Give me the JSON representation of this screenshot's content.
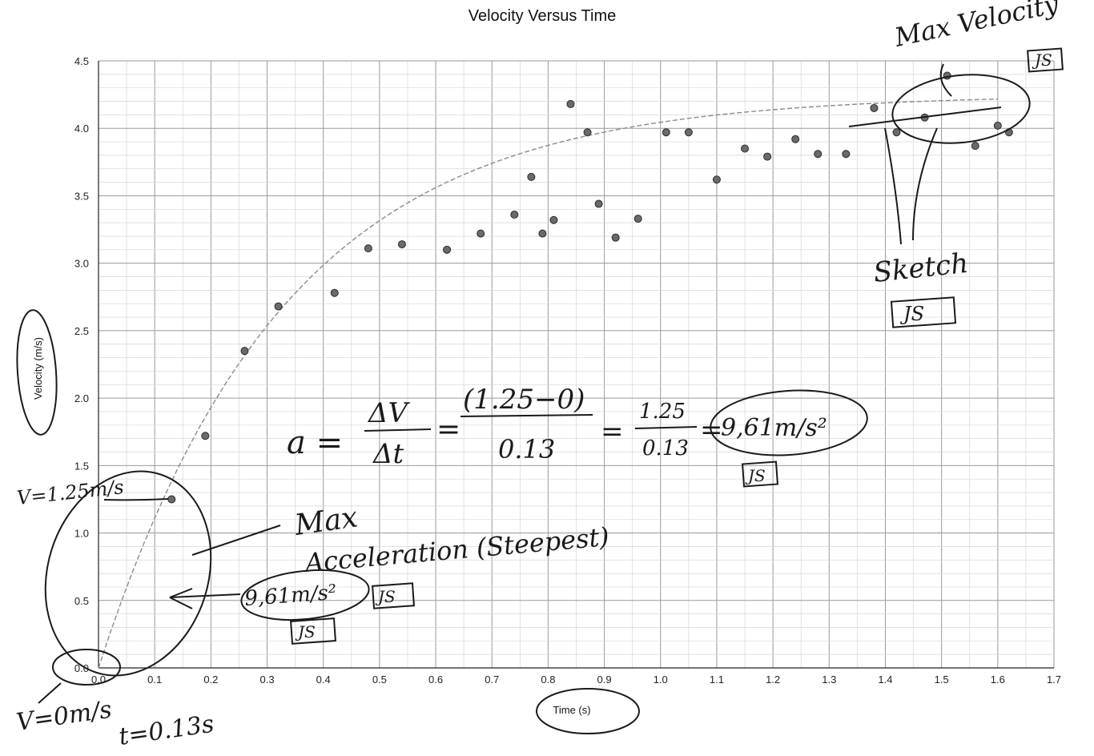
{
  "chart_data": {
    "type": "scatter",
    "title": "Velocity Versus Time",
    "xlabel": "Time (s)",
    "ylabel": "Velocity (m/s)",
    "xlim": [
      0.0,
      1.7
    ],
    "ylim": [
      0.0,
      4.5
    ],
    "x_ticks": [
      "0.0",
      "0.1",
      "0.2",
      "0.3",
      "0.4",
      "0.5",
      "0.6",
      "0.7",
      "0.8",
      "0.9",
      "1.0",
      "1.1",
      "1.2",
      "1.3",
      "1.4",
      "1.5",
      "1.6",
      "1.7"
    ],
    "y_ticks": [
      "0.0",
      "0.5",
      "1.0",
      "1.5",
      "2.0",
      "2.5",
      "3.0",
      "3.5",
      "4.0",
      "4.5"
    ],
    "grid": true,
    "legend": "none",
    "points": [
      {
        "x": 0.13,
        "y": 1.25
      },
      {
        "x": 0.19,
        "y": 1.72
      },
      {
        "x": 0.26,
        "y": 2.35
      },
      {
        "x": 0.32,
        "y": 2.68
      },
      {
        "x": 0.42,
        "y": 2.78
      },
      {
        "x": 0.48,
        "y": 3.11
      },
      {
        "x": 0.54,
        "y": 3.14
      },
      {
        "x": 0.62,
        "y": 3.1
      },
      {
        "x": 0.68,
        "y": 3.22
      },
      {
        "x": 0.74,
        "y": 3.36
      },
      {
        "x": 0.77,
        "y": 3.64
      },
      {
        "x": 0.79,
        "y": 3.22
      },
      {
        "x": 0.81,
        "y": 3.32
      },
      {
        "x": 0.84,
        "y": 4.18
      },
      {
        "x": 0.87,
        "y": 3.97
      },
      {
        "x": 0.89,
        "y": 3.44
      },
      {
        "x": 0.92,
        "y": 3.19
      },
      {
        "x": 0.96,
        "y": 3.33
      },
      {
        "x": 1.01,
        "y": 3.97
      },
      {
        "x": 1.05,
        "y": 3.97
      },
      {
        "x": 1.1,
        "y": 3.62
      },
      {
        "x": 1.15,
        "y": 3.85
      },
      {
        "x": 1.19,
        "y": 3.79
      },
      {
        "x": 1.24,
        "y": 3.92
      },
      {
        "x": 1.28,
        "y": 3.81
      },
      {
        "x": 1.33,
        "y": 3.81
      },
      {
        "x": 1.38,
        "y": 4.15
      },
      {
        "x": 1.42,
        "y": 3.97
      },
      {
        "x": 1.47,
        "y": 4.08
      },
      {
        "x": 1.51,
        "y": 4.39
      },
      {
        "x": 1.56,
        "y": 3.87
      },
      {
        "x": 1.6,
        "y": 4.02
      },
      {
        "x": 1.62,
        "y": 3.97
      }
    ],
    "annotations": {
      "max_velocity": "Max Velocity",
      "initials_top": "JS",
      "sketch": "Sketch",
      "initials_sketch": "JS",
      "v_start": "V=1.25m/s",
      "formula_lhs": "a =",
      "formula_frac1_num": "ΔV",
      "formula_frac1_den": "Δt",
      "formula_frac2_num": "(1.25−0)",
      "formula_frac2_den": "0.13",
      "formula_frac3_num": "1.25",
      "formula_frac3_den": "0.13",
      "formula_eq": "=",
      "formula_result": "9,61m/s²",
      "initials_formula": "JS",
      "max_label": "Max",
      "acceleration_label": "Acceleration (Steepest)",
      "accel_value": "9,61m/s²",
      "initials_accel1": "JS",
      "initials_accel2": "JS",
      "v_zero": "V=0m/s",
      "t_value": "t=0.13s"
    }
  }
}
